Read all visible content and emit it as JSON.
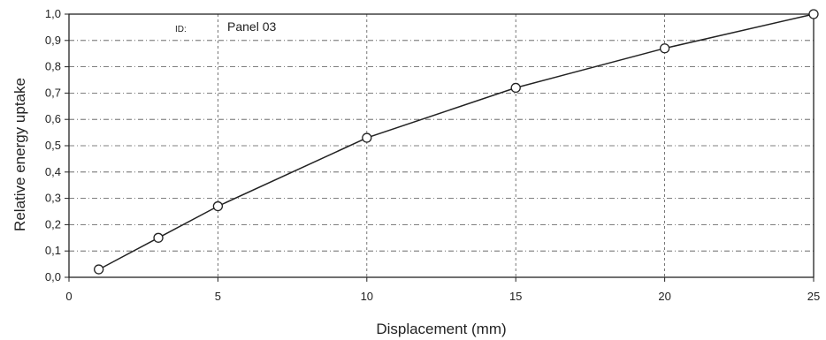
{
  "chart_data": {
    "type": "line",
    "title": "",
    "xlabel": "Displacement (mm)",
    "ylabel": "Relative energy uptake",
    "xlim": [
      0,
      25
    ],
    "ylim": [
      0,
      1
    ],
    "x_ticks": [
      0,
      5,
      10,
      15,
      20,
      25
    ],
    "x_tick_labels": [
      "0",
      "5",
      "10",
      "15",
      "20",
      "25"
    ],
    "y_ticks": [
      0,
      0.1,
      0.2,
      0.3,
      0.4,
      0.5,
      0.6,
      0.7,
      0.8,
      0.9,
      1.0
    ],
    "y_tick_labels": [
      "0,0",
      "0,1",
      "0,2",
      "0,3",
      "0,4",
      "0,5",
      "0,6",
      "0,7",
      "0,8",
      "0,9",
      "1,0"
    ],
    "grid": true,
    "series": [
      {
        "x": [
          1,
          3,
          5,
          10,
          15,
          20,
          25
        ],
        "y": [
          0.03,
          0.15,
          0.27,
          0.53,
          0.72,
          0.87,
          1.0
        ],
        "marker": "open-circle",
        "color": "#222222"
      }
    ],
    "annotations": {
      "id_label": "ID:",
      "panel_label": "Panel 03"
    }
  }
}
